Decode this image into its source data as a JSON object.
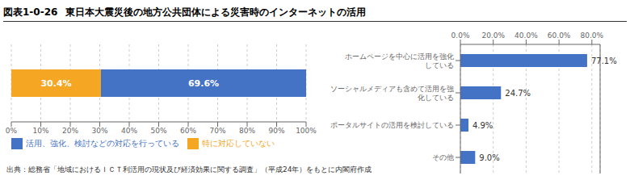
{
  "chart_data": [
    {
      "type": "bar",
      "title": "東日本大震災後の地方公共団体による災害時のインターネットの活用",
      "annotations": [
        "図表1-0-26",
        "出典：総務省「地域におけるＩＣＴ利活用の現状及び経済効果に関する調査」（平成24年）をもとに内閣府作成"
      ],
      "orientation": "horizontal",
      "stacked": true,
      "categories": [
        null
      ],
      "series": [
        {
          "name": "特に対応していない",
          "color": "#F5A623",
          "values": [
            30.4
          ],
          "value_labels": [
            "30.4%"
          ]
        },
        {
          "name": "活用、強化、検討などの対応を行っている",
          "color": "#4472C4",
          "values": [
            69.6
          ],
          "value_labels": [
            "69.6%"
          ]
        }
      ],
      "xlim": [
        0,
        100
      ],
      "xticks": [
        {
          "value": 0,
          "label": "0%"
        },
        {
          "value": 10,
          "label": "10%"
        },
        {
          "value": 20,
          "label": "20%"
        },
        {
          "value": 30,
          "label": "30%"
        },
        {
          "value": 40,
          "label": "40%"
        },
        {
          "value": 50,
          "label": "50%"
        },
        {
          "value": 60,
          "label": "60%"
        },
        {
          "value": 70,
          "label": "70%"
        },
        {
          "value": 80,
          "label": "80%"
        },
        {
          "value": 90,
          "label": "90%"
        },
        {
          "value": 100,
          "label": "100%"
        }
      ],
      "grid": true,
      "legend": "bottom",
      "tick_labels": "x"
    },
    {
      "type": "bar",
      "orientation": "horizontal",
      "categories": [
        "ホームページを中心に活用を強化\nしている",
        "ソーシャルメディアも含めて活用を強\n化している",
        "ポータルサイトの活用を検討している",
        "その他"
      ],
      "values": [
        77.1,
        24.7,
        4.9,
        9.0
      ],
      "value_labels": [
        "77.1%",
        "24.7%",
        "4.9%",
        "9.0%"
      ],
      "color": "#4472C4",
      "xlim": [
        0,
        85
      ],
      "xticks": [
        {
          "value": 0.0,
          "label": "0.0%"
        },
        {
          "value": 20.0,
          "label": "20.0%"
        },
        {
          "value": 40.0,
          "label": "40.0%"
        },
        {
          "value": 60.0,
          "label": "60.0%"
        },
        {
          "value": 80.0,
          "label": "80.0%"
        }
      ],
      "grid": true
    }
  ]
}
